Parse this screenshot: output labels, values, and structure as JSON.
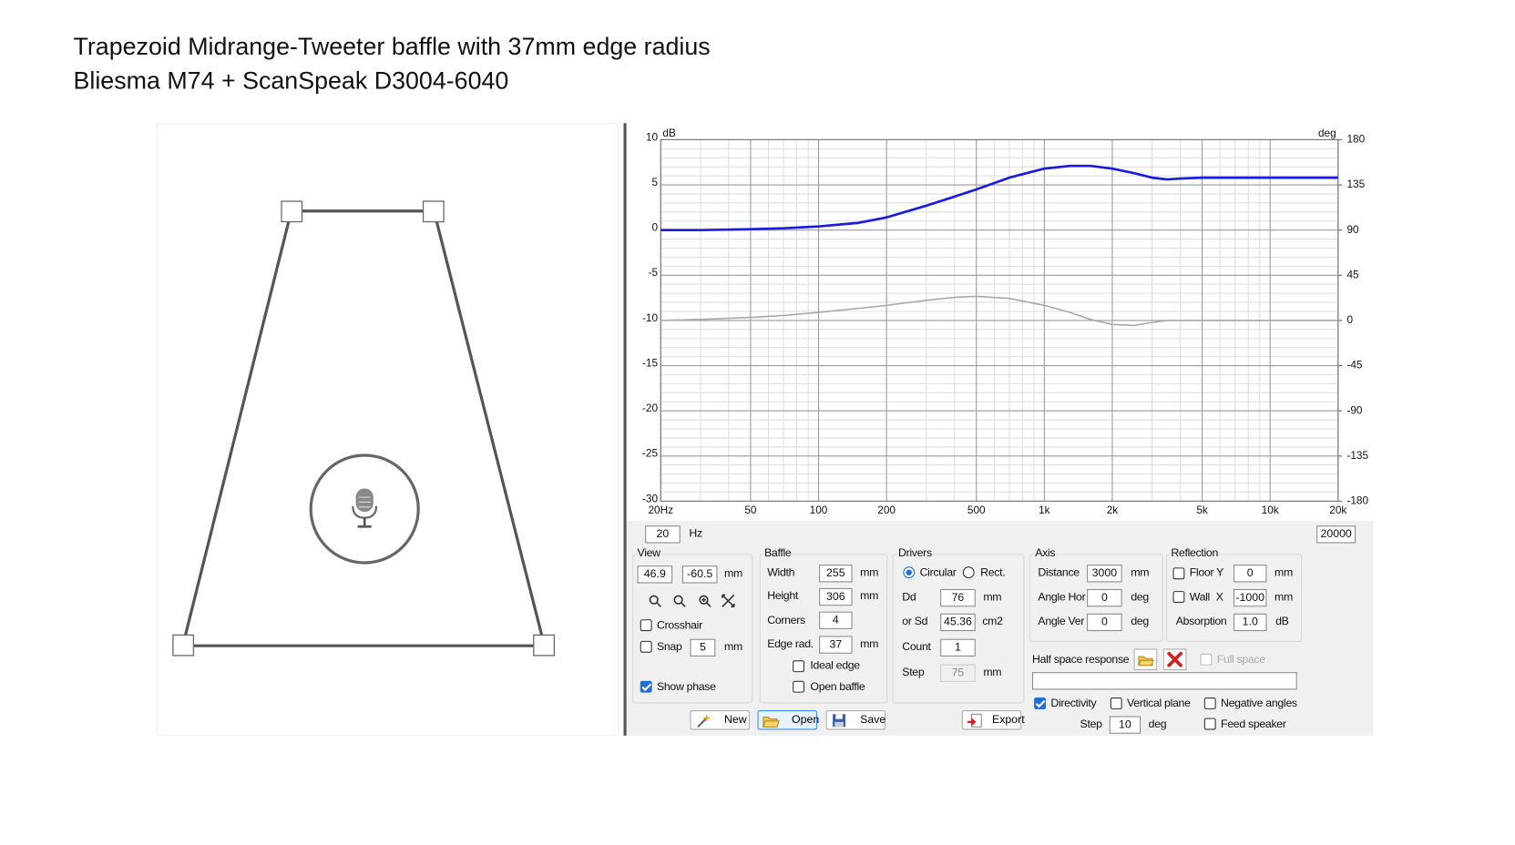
{
  "header": {
    "title": [
      "Trapezoid Midrange-Tweeter baffle with 37mm edge radius",
      "Bliesma M74 + ScanSpeak D3004-6040"
    ]
  },
  "chart_data": {
    "type": "line",
    "y_label": "dB",
    "y2_label": "deg",
    "x": [
      20,
      30,
      50,
      70,
      100,
      150,
      200,
      300,
      400,
      500,
      700,
      1000,
      1300,
      1600,
      2000,
      2500,
      3000,
      3500,
      4000,
      5000,
      7000,
      10000,
      20000
    ],
    "xlog": true,
    "xlim": [
      20,
      20000
    ],
    "xticks": [
      {
        "value": 20,
        "label": "20Hz"
      },
      50,
      100,
      200,
      500,
      {
        "value": 1000,
        "label": "1k"
      },
      {
        "value": 2000,
        "label": "2k"
      },
      {
        "value": 5000,
        "label": "5k"
      },
      {
        "value": 10000,
        "label": "10k"
      },
      {
        "value": 20000,
        "label": "20k"
      }
    ],
    "xminorticks": [
      30,
      40,
      60,
      70,
      80,
      90,
      300,
      400,
      600,
      700,
      800,
      900,
      3000,
      4000,
      6000,
      7000,
      8000,
      9000
    ],
    "ylim": [
      -30,
      10
    ],
    "yticks": [
      10,
      5,
      0,
      -5,
      -10,
      -15,
      -20,
      -25,
      -30
    ],
    "yminorticks": [
      9,
      8,
      7,
      6,
      4,
      3,
      2,
      1,
      -1,
      -2,
      -3,
      -4,
      -6,
      -7,
      -8,
      -9,
      -11,
      -12,
      -13,
      -14,
      -16,
      -17,
      -18,
      -19,
      -21,
      -22,
      -23,
      -24,
      -26,
      -27,
      -28,
      -29
    ],
    "y2lim": [
      -180,
      180
    ],
    "y2ticks": [
      180,
      135,
      90,
      45,
      0,
      -45,
      -90,
      -135,
      -180
    ],
    "grid": true,
    "series": [
      {
        "color": "#1a1ae0",
        "values": [
          0,
          0,
          0.1,
          0.2,
          0.4,
          0.8,
          1.4,
          2.7,
          3.7,
          4.5,
          5.8,
          6.8,
          7.1,
          7.1,
          6.8,
          6.3,
          5.8,
          5.6,
          5.7,
          5.8,
          5.8,
          5.8,
          5.8
        ]
      },
      {
        "color": "#a8a8a8",
        "axis": "y2",
        "values": [
          0,
          1,
          3,
          5,
          8,
          12,
          15,
          20,
          23,
          24,
          22,
          15,
          8,
          1,
          -4,
          -5,
          -2,
          0,
          0,
          0,
          0,
          0,
          0
        ]
      }
    ]
  },
  "range": {
    "from": "20",
    "unit": "Hz",
    "to": "20000"
  },
  "view": {
    "label": "View",
    "x": "46.9",
    "y": "-60.5",
    "unit": "mm",
    "crosshair": "Crosshair",
    "snap": "Snap",
    "snap_value": "5",
    "snap_unit": "mm",
    "show_phase": "Show phase"
  },
  "baffle": {
    "label": "Baffle",
    "width_label": "Width",
    "width": "255",
    "height_label": "Height",
    "height": "306",
    "corners_label": "Corners",
    "corners": "4",
    "edge_label": "Edge rad.",
    "edge": "37",
    "unit": "mm",
    "ideal_edge": "Ideal edge",
    "open_baffle": "Open baffle"
  },
  "drivers": {
    "label": "Drivers",
    "circular": "Circular",
    "rect": "Rect.",
    "dd_label": "Dd",
    "dd": "76",
    "dd_unit": "mm",
    "sd_label": "or Sd",
    "sd": "45.36",
    "sd_unit": "cm2",
    "count_label": "Count",
    "count": "1",
    "step_label": "Step",
    "step": "75",
    "step_unit": "mm"
  },
  "axis": {
    "label": "Axis",
    "distance_label": "Distance",
    "distance": "3000",
    "distance_unit": "mm",
    "hor_label": "Angle Hor",
    "hor": "0",
    "ver_label": "Angle Ver",
    "ver": "0",
    "angle_unit": "deg"
  },
  "reflection": {
    "label": "Reflection",
    "floor_label": "Floor Y",
    "floor": "0",
    "wall_label": "Wall",
    "wall_axis": "X",
    "wall": "-1000",
    "unit": "mm",
    "absorption_label": "Absorption",
    "absorption": "1.0",
    "absorption_unit": "dB"
  },
  "half_space": {
    "label": "Half space response",
    "full_space": "Full space"
  },
  "directivity": {
    "directivity": "Directivity",
    "vertical_plane": "Vertical plane",
    "negative_angles": "Negative angles",
    "step_label": "Step",
    "step": "10",
    "step_unit": "deg",
    "feed_speaker": "Feed speaker"
  },
  "buttons": {
    "new": "New",
    "open": "Open",
    "save": "Save",
    "export": "Export"
  }
}
